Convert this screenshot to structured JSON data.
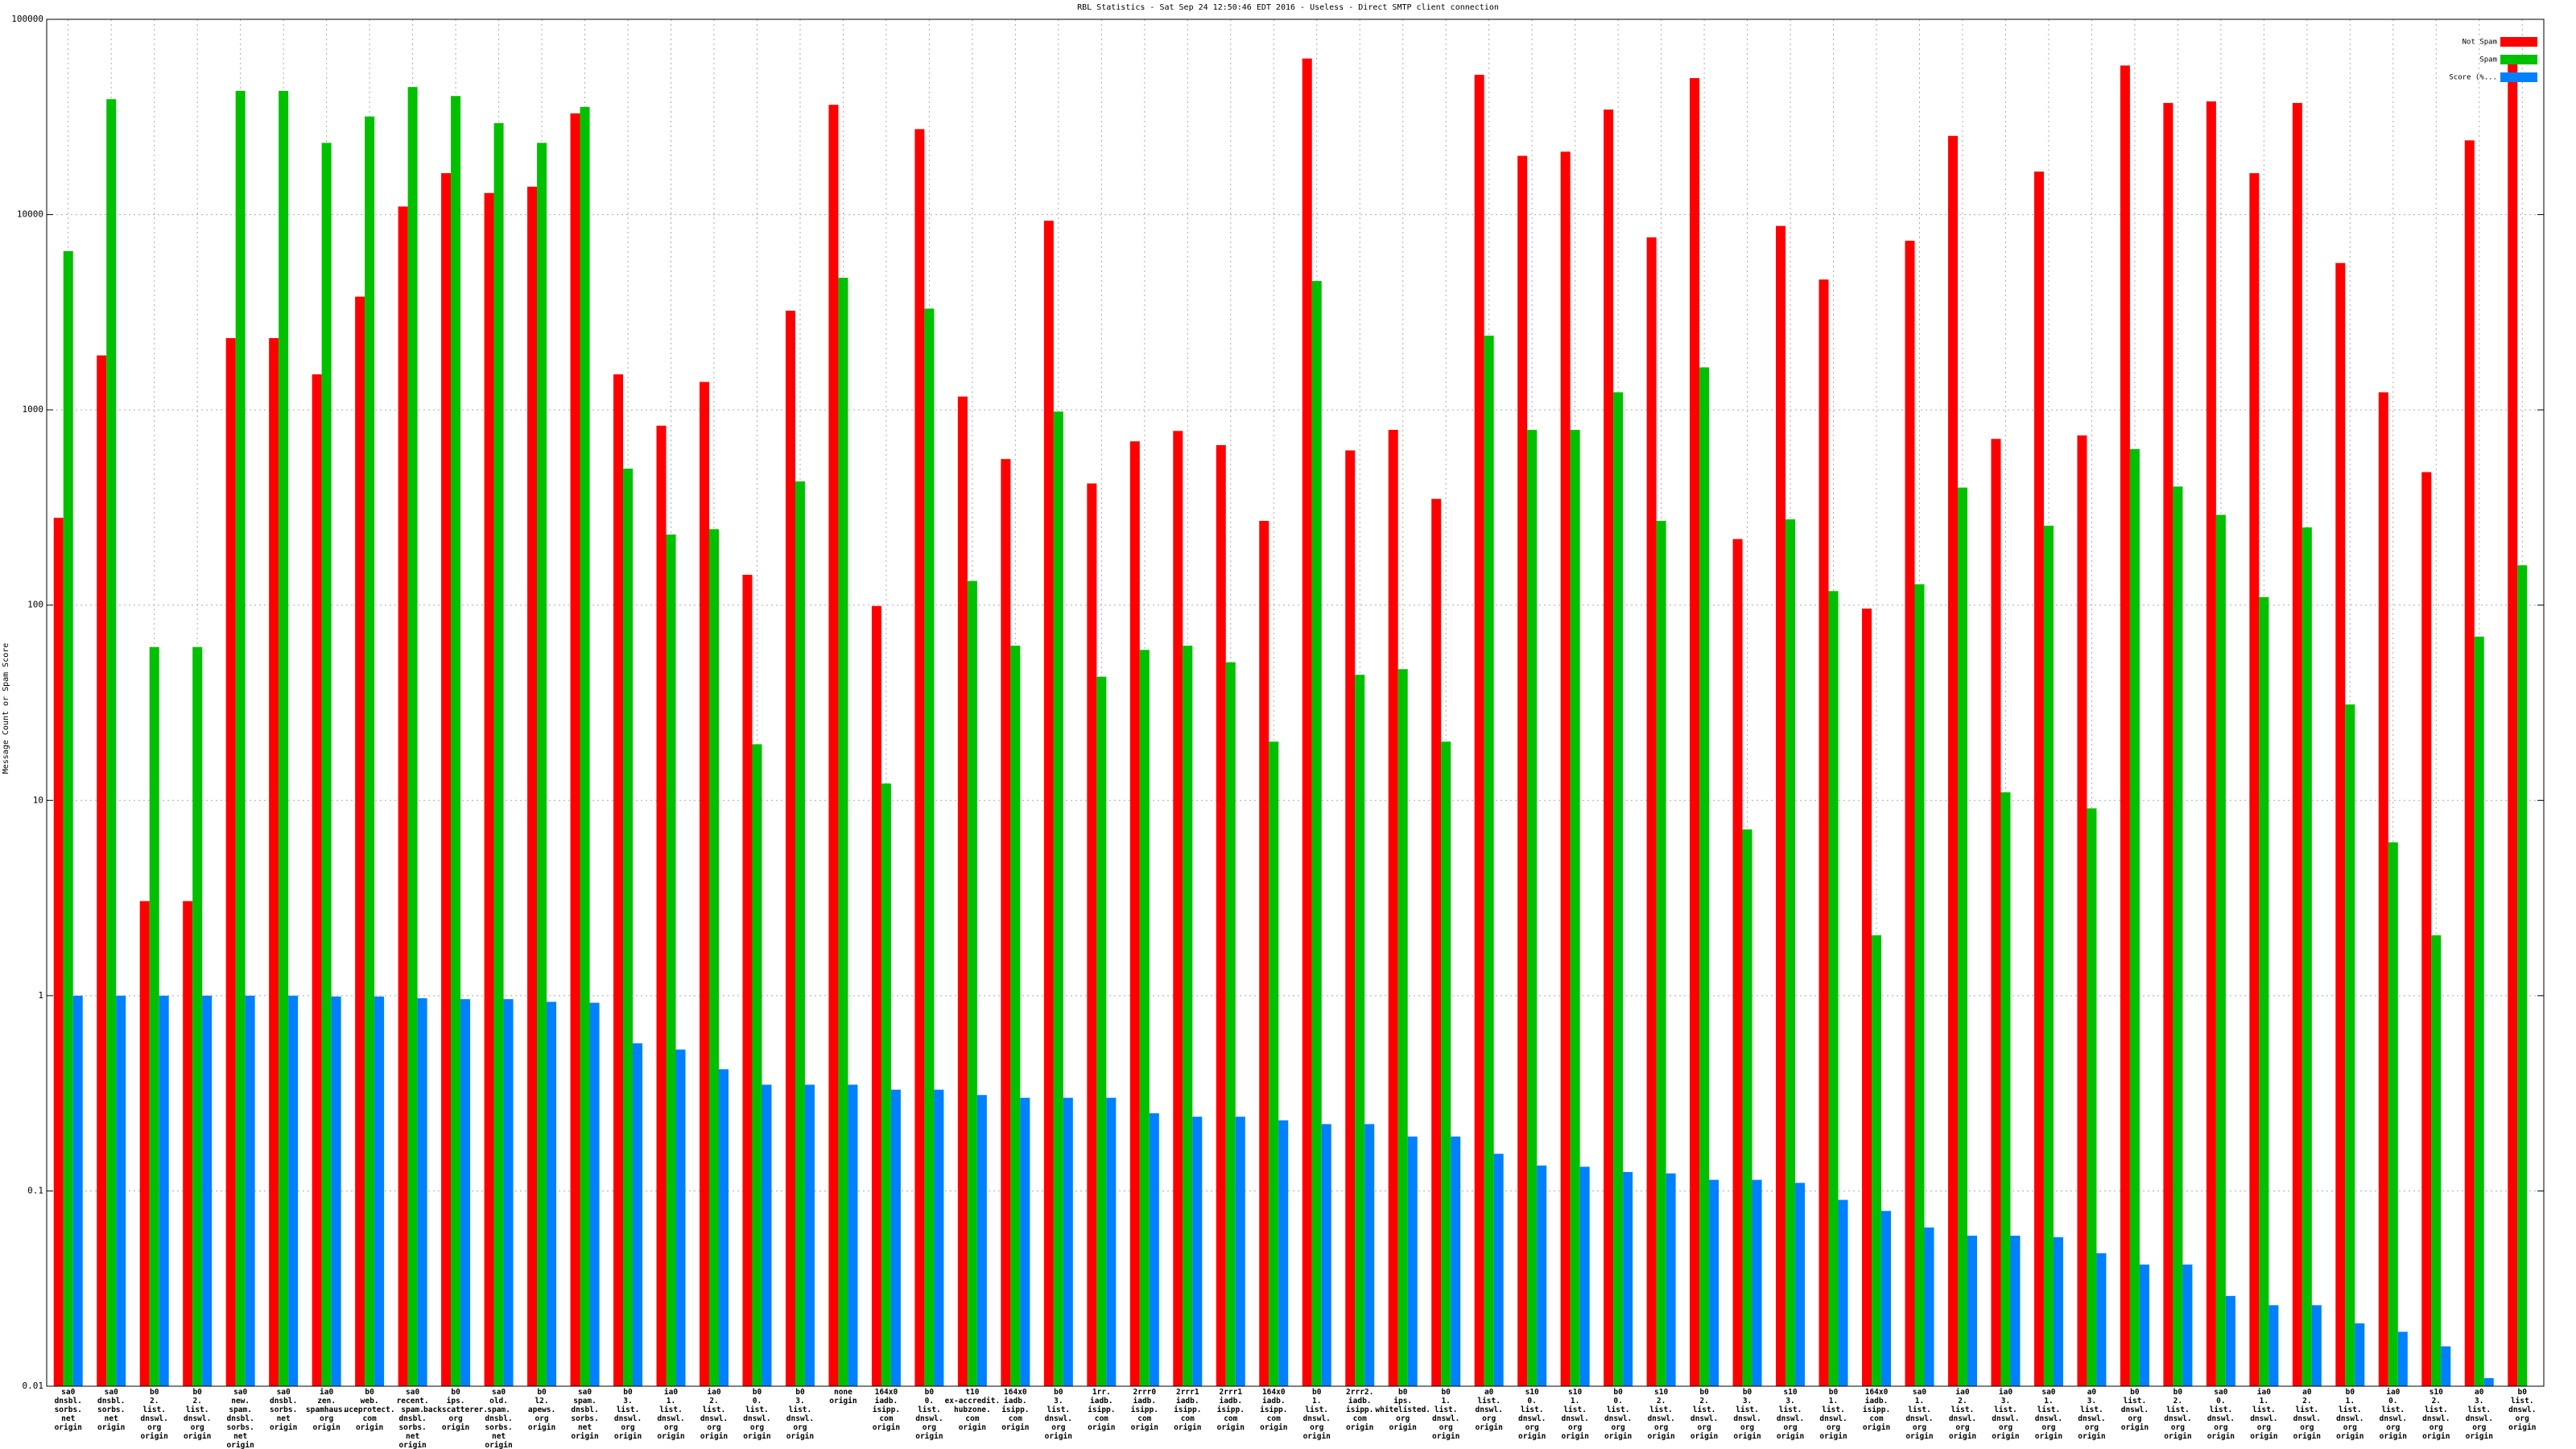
{
  "chart_data": {
    "type": "bar",
    "title": "RBL Statistics - Sat Sep 24 12:50:46 EDT 2016 - Useless - Direct SMTP client connection",
    "y_label": "Message Count or Spam Score",
    "log_scale": true,
    "grid": true,
    "legend": "top-right",
    "ylim": [
      0.01,
      100000
    ],
    "yticks": [
      0.01,
      0.1,
      1,
      10,
      100,
      1000,
      10000,
      100000
    ],
    "categories": [
      [
        "sa0",
        "dnsbl.",
        "sorbs.",
        "net",
        "origin"
      ],
      [
        "sa0",
        "dnsbl.",
        "sorbs.",
        "net",
        "origin"
      ],
      [
        "b0",
        "2.",
        "list.",
        "dnswl.",
        "org",
        "origin"
      ],
      [
        "b0",
        "2.",
        "list.",
        "dnswl.",
        "org",
        "origin"
      ],
      [
        "sa0",
        "new.",
        "spam.",
        "dnsbl.",
        "sorbs.",
        "net",
        "origin"
      ],
      [
        "sa0",
        "dnsbl.",
        "sorbs.",
        "net",
        "origin"
      ],
      [
        "ia0",
        "zen.",
        "spamhaus.",
        "org",
        "origin"
      ],
      [
        "b0",
        "web.",
        "uceprotect.",
        "com",
        "origin"
      ],
      [
        "sa0",
        "recent.",
        "spam.",
        "dnsbl.",
        "sorbs.",
        "net",
        "origin"
      ],
      [
        "b0",
        "ips.",
        "backscatterer.",
        "org",
        "origin"
      ],
      [
        "sa0",
        "old.",
        "spam.",
        "dnsbl.",
        "sorbs.",
        "net",
        "origin"
      ],
      [
        "b0",
        "l2.",
        "apews.",
        "org",
        "origin"
      ],
      [
        "sa0",
        "spam.",
        "dnsbl.",
        "sorbs.",
        "net",
        "origin"
      ],
      [
        "b0",
        "3.",
        "list.",
        "dnswl.",
        "org",
        "origin"
      ],
      [
        "ia0",
        "1.",
        "list.",
        "dnswl.",
        "org",
        "origin"
      ],
      [
        "ia0",
        "2.",
        "list.",
        "dnswl.",
        "org",
        "origin"
      ],
      [
        "b0",
        "0.",
        "list.",
        "dnswl.",
        "org",
        "origin"
      ],
      [
        "b0",
        "3.",
        "list.",
        "dnswl.",
        "org",
        "origin"
      ],
      [
        "none",
        "origin"
      ],
      [
        "164x0",
        "iadb.",
        "isipp.",
        "com",
        "origin"
      ],
      [
        "b0",
        "0.",
        "list.",
        "dnswl.",
        "org",
        "origin"
      ],
      [
        "t10",
        "ex-accredit.",
        "hubzone.",
        "com",
        "origin"
      ],
      [
        "164x0",
        "iadb.",
        "isipp.",
        "com",
        "origin"
      ],
      [
        "b0",
        "3.",
        "list.",
        "dnswl.",
        "org",
        "origin"
      ],
      [
        "1rr.",
        "iadb.",
        "isipp.",
        "com",
        "origin"
      ],
      [
        "2rrr0",
        "iadb.",
        "isipp.",
        "com",
        "origin"
      ],
      [
        "2rrr1",
        "iadb.",
        "isipp.",
        "com",
        "origin"
      ],
      [
        "2rrr1",
        "iadb.",
        "isipp.",
        "com",
        "origin"
      ],
      [
        "164x0",
        "iadb.",
        "isipp.",
        "com",
        "origin"
      ],
      [
        "b0",
        "1.",
        "list.",
        "dnswl.",
        "org",
        "origin"
      ],
      [
        "2rrr2.",
        "iadb.",
        "isipp.",
        "com",
        "origin"
      ],
      [
        "b0",
        "ips.",
        "whitelisted.",
        "org",
        "origin"
      ],
      [
        "b0",
        "1.",
        "list.",
        "dnswl.",
        "org",
        "origin"
      ],
      [
        "a0",
        "list.",
        "dnswl.",
        "org",
        "origin"
      ],
      [
        "s10",
        "0.",
        "list.",
        "dnswl.",
        "org",
        "origin"
      ],
      [
        "s10",
        "1.",
        "list.",
        "dnswl.",
        "org",
        "origin"
      ],
      [
        "b0",
        "0.",
        "list.",
        "dnswl.",
        "org",
        "origin"
      ],
      [
        "s10",
        "2.",
        "list.",
        "dnswl.",
        "org",
        "origin"
      ],
      [
        "b0",
        "2.",
        "list.",
        "dnswl.",
        "org",
        "origin"
      ],
      [
        "b0",
        "3.",
        "list.",
        "dnswl.",
        "org",
        "origin"
      ],
      [
        "s10",
        "3.",
        "list.",
        "dnswl.",
        "org",
        "origin"
      ],
      [
        "b0",
        "1.",
        "list.",
        "dnswl.",
        "org",
        "origin"
      ],
      [
        "164x0",
        "iadb.",
        "isipp.",
        "com",
        "origin"
      ],
      [
        "sa0",
        "1.",
        "list.",
        "dnswl.",
        "org",
        "origin"
      ],
      [
        "ia0",
        "2.",
        "list.",
        "dnswl.",
        "org",
        "origin"
      ],
      [
        "ia0",
        "3.",
        "list.",
        "dnswl.",
        "org",
        "origin"
      ],
      [
        "sa0",
        "1.",
        "list.",
        "dnswl.",
        "org",
        "origin"
      ],
      [
        "a0",
        "3.",
        "list.",
        "dnswl.",
        "org",
        "origin"
      ],
      [
        "b0",
        "list.",
        "dnswl.",
        "org",
        "origin"
      ],
      [
        "b0",
        "2.",
        "list.",
        "dnswl.",
        "org",
        "origin"
      ],
      [
        "sa0",
        "0.",
        "list.",
        "dnswl.",
        "org",
        "origin"
      ],
      [
        "ia0",
        "1.",
        "list.",
        "dnswl.",
        "org",
        "origin"
      ],
      [
        "a0",
        "2.",
        "list.",
        "dnswl.",
        "org",
        "origin"
      ],
      [
        "b0",
        "1.",
        "list.",
        "dnswl.",
        "org",
        "origin"
      ],
      [
        "ia0",
        "0.",
        "list.",
        "dnswl.",
        "org",
        "origin"
      ],
      [
        "s10",
        "2.",
        "list.",
        "dnswl.",
        "org",
        "origin"
      ],
      [
        "a0",
        "3.",
        "list.",
        "dnswl.",
        "org",
        "origin"
      ],
      [
        "b0",
        "list.",
        "dnswl.",
        "org",
        "origin"
      ]
    ],
    "series": [
      {
        "name": "Not Spam",
        "color": "#ff0000",
        "values": [
          280,
          1900,
          3.05,
          3.05,
          2330,
          2330,
          1520,
          3800,
          11000,
          16300,
          12900,
          13900,
          33000,
          1520,
          830,
          1390,
          143,
          3220,
          36500,
          99,
          27400,
          1170,
          560,
          9300,
          420,
          690,
          780,
          660,
          270,
          63000,
          620,
          790,
          350,
          52000,
          20000,
          21000,
          34500,
          7650,
          50000,
          218,
          8750,
          4650,
          96,
          7350,
          25300,
          710,
          16600,
          740,
          58000,
          37300,
          38000,
          16300,
          37300,
          5650,
          1230,
          480,
          24000,
          63000
        ]
      },
      {
        "name": "Spam",
        "color": "#00c000",
        "values": [
          6500,
          39000,
          61,
          61,
          43000,
          43000,
          23300,
          31800,
          45000,
          40500,
          29400,
          23300,
          35600,
          500,
          230,
          245,
          19.4,
          430,
          4750,
          12.2,
          3300,
          133,
          62,
          980,
          43,
          59,
          62,
          51,
          20,
          4570,
          44,
          47,
          20,
          2400,
          790,
          790,
          1230,
          270,
          1650,
          7.1,
          275,
          118,
          2.04,
          128,
          400,
          11,
          255,
          9.1,
          630,
          405,
          290,
          110,
          250,
          31,
          6.1,
          2.04,
          69,
          160
        ]
      },
      {
        "name": "Score (%...",
        "color": "#0080ff",
        "values": [
          1.0,
          1.0,
          1.0,
          1.0,
          1.0,
          1.0,
          0.99,
          0.99,
          0.97,
          0.96,
          0.96,
          0.93,
          0.92,
          0.57,
          0.53,
          0.42,
          0.35,
          0.35,
          0.35,
          0.33,
          0.33,
          0.31,
          0.3,
          0.3,
          0.3,
          0.25,
          0.24,
          0.24,
          0.23,
          0.22,
          0.22,
          0.19,
          0.19,
          0.155,
          0.135,
          0.133,
          0.125,
          0.123,
          0.114,
          0.114,
          0.11,
          0.09,
          0.079,
          0.065,
          0.059,
          0.059,
          0.058,
          0.048,
          0.042,
          0.042,
          0.029,
          0.026,
          0.026,
          0.021,
          0.019,
          0.016,
          0.011,
          null
        ]
      }
    ]
  }
}
